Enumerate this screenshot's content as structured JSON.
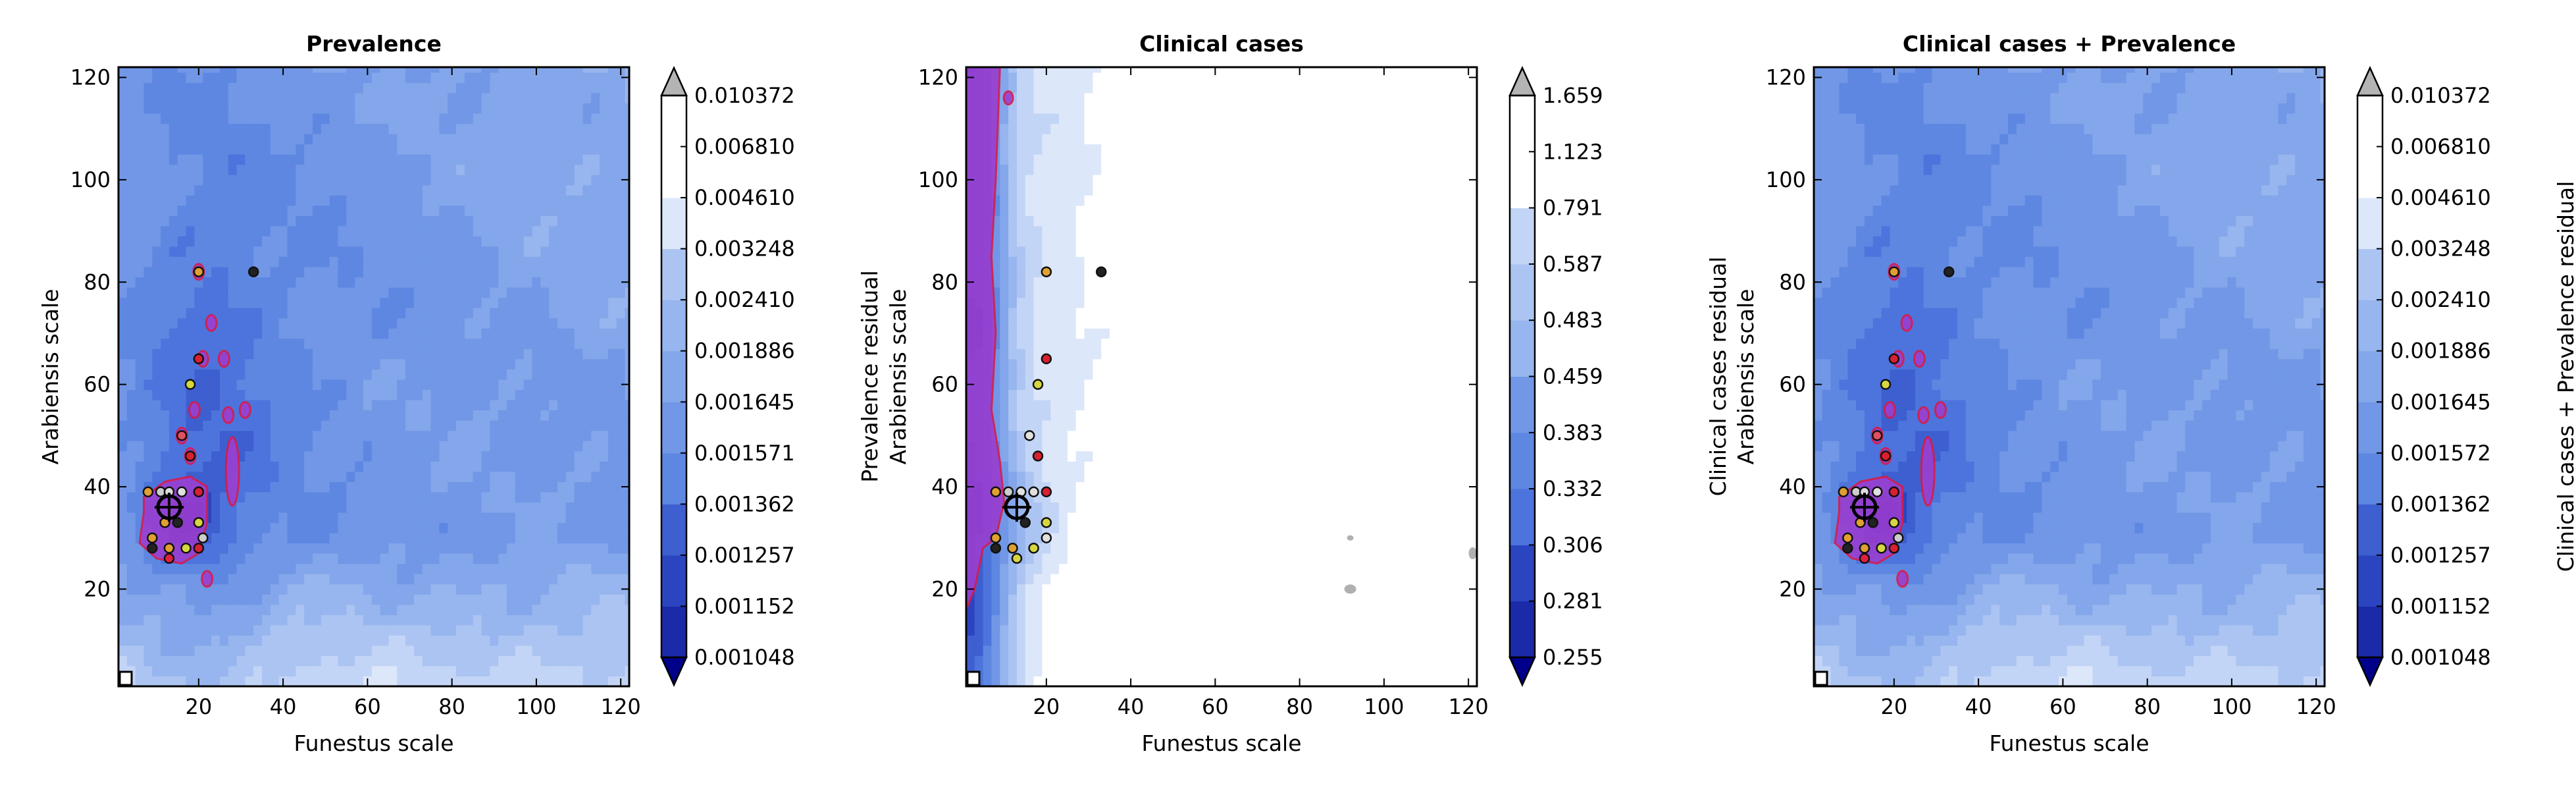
{
  "figure": {
    "colors": {
      "levels": [
        "#00008b",
        "#1a2aa8",
        "#2b45c0",
        "#3e5fd0",
        "#4d74dc",
        "#5e87e2",
        "#7197e6",
        "#84a6ea",
        "#97b5ee",
        "#acc4f2",
        "#c3d5f6",
        "#dde7fa",
        "#ffffff"
      ],
      "over": "#b4b4b4",
      "sig_fill": "#9a3fd0",
      "sig_edge": "#d81b4a",
      "grey_blob": "#b0b0b0"
    }
  },
  "chart_data": [
    {
      "type": "heatmap",
      "title": "Prevalence",
      "xlabel": "Funestus scale",
      "ylabel": "Arabiensis scale",
      "xlim": [
        1,
        122
      ],
      "ylim": [
        1,
        122
      ],
      "xticks": [
        20,
        40,
        60,
        80,
        100,
        120
      ],
      "yticks": [
        20,
        40,
        60,
        80,
        100,
        120
      ],
      "colorbar": {
        "label": "Prevalence residual",
        "extend": "both",
        "ticks": [
          "0.001048",
          "0.001152",
          "0.001257",
          "0.001362",
          "0.001571",
          "0.001645",
          "0.001886",
          "0.002410",
          "0.003248",
          "0.004610",
          "0.006810",
          "0.010372"
        ]
      },
      "best_fit": [
        13,
        36
      ],
      "points": [
        {
          "x": 20,
          "y": 82,
          "c": "#e0a030"
        },
        {
          "x": 33,
          "y": 82,
          "c": "#222222"
        },
        {
          "x": 20,
          "y": 65,
          "c": "#d82030"
        },
        {
          "x": 18,
          "y": 60,
          "c": "#d6d640"
        },
        {
          "x": 18,
          "y": 46,
          "c": "#d82030"
        },
        {
          "x": 16,
          "y": 50,
          "c": "#e05060"
        },
        {
          "x": 8,
          "y": 39,
          "c": "#e0a030"
        },
        {
          "x": 11,
          "y": 39,
          "c": "#cccccc"
        },
        {
          "x": 13,
          "y": 39,
          "c": "#dddddd"
        },
        {
          "x": 16,
          "y": 39,
          "c": "#e0e0e0"
        },
        {
          "x": 20,
          "y": 39,
          "c": "#d82030"
        },
        {
          "x": 12,
          "y": 33,
          "c": "#e0a030"
        },
        {
          "x": 15,
          "y": 33,
          "c": "#222222"
        },
        {
          "x": 20,
          "y": 33,
          "c": "#d6d640"
        },
        {
          "x": 9,
          "y": 30,
          "c": "#e0a030"
        },
        {
          "x": 9,
          "y": 28,
          "c": "#222222"
        },
        {
          "x": 13,
          "y": 28,
          "c": "#e0a030"
        },
        {
          "x": 17,
          "y": 28,
          "c": "#d6d640"
        },
        {
          "x": 21,
          "y": 30,
          "c": "#cccccc"
        },
        {
          "x": 13,
          "y": 26,
          "c": "#e02040"
        },
        {
          "x": 20,
          "y": 28,
          "c": "#d82030"
        }
      ]
    },
    {
      "type": "heatmap",
      "title": "Clinical cases",
      "xlabel": "Funestus scale",
      "ylabel": "Arabiensis scale",
      "xlim": [
        1,
        122
      ],
      "ylim": [
        1,
        122
      ],
      "xticks": [
        20,
        40,
        60,
        80,
        100,
        120
      ],
      "yticks": [
        20,
        40,
        60,
        80,
        100,
        120
      ],
      "colorbar": {
        "label": "Clinical cases residual",
        "extend": "both",
        "ticks": [
          "0.255",
          "0.281",
          "0.306",
          "0.332",
          "0.383",
          "0.459",
          "0.483",
          "0.587",
          "0.791",
          "1.123",
          "1.659"
        ]
      },
      "best_fit": [
        13,
        36
      ],
      "points": [
        {
          "x": 20,
          "y": 82,
          "c": "#e0a030"
        },
        {
          "x": 33,
          "y": 82,
          "c": "#222222"
        },
        {
          "x": 20,
          "y": 65,
          "c": "#d82030"
        },
        {
          "x": 18,
          "y": 60,
          "c": "#d6d640"
        },
        {
          "x": 16,
          "y": 50,
          "c": "#e0e0e0"
        },
        {
          "x": 18,
          "y": 46,
          "c": "#d82030"
        },
        {
          "x": 8,
          "y": 39,
          "c": "#e0a030"
        },
        {
          "x": 11,
          "y": 39,
          "c": "#cccccc"
        },
        {
          "x": 14,
          "y": 39,
          "c": "#e0e0e0"
        },
        {
          "x": 17,
          "y": 39,
          "c": "#e0e0e0"
        },
        {
          "x": 20,
          "y": 39,
          "c": "#d82030"
        },
        {
          "x": 20,
          "y": 33,
          "c": "#d6d640"
        },
        {
          "x": 15,
          "y": 33,
          "c": "#222222"
        },
        {
          "x": 8,
          "y": 30,
          "c": "#e0a030"
        },
        {
          "x": 8,
          "y": 28,
          "c": "#222222"
        },
        {
          "x": 12,
          "y": 28,
          "c": "#e0a030"
        },
        {
          "x": 17,
          "y": 28,
          "c": "#d6d640"
        },
        {
          "x": 20,
          "y": 30,
          "c": "#e0e0e0"
        },
        {
          "x": 13,
          "y": 26,
          "c": "#d6d640"
        }
      ]
    },
    {
      "type": "heatmap",
      "title": "Clinical cases + Prevalence",
      "xlabel": "Funestus scale",
      "ylabel": "Arabiensis scale",
      "xlim": [
        1,
        122
      ],
      "ylim": [
        1,
        122
      ],
      "xticks": [
        20,
        40,
        60,
        80,
        100,
        120
      ],
      "yticks": [
        20,
        40,
        60,
        80,
        100,
        120
      ],
      "colorbar": {
        "label": "Clinical cases + Prevalence residual",
        "extend": "both",
        "ticks": [
          "0.001048",
          "0.001152",
          "0.001257",
          "0.001362",
          "0.001572",
          "0.001645",
          "0.001886",
          "0.002410",
          "0.003248",
          "0.004610",
          "0.006810",
          "0.010372"
        ]
      },
      "best_fit": [
        13,
        36
      ],
      "points": [
        {
          "x": 20,
          "y": 82,
          "c": "#e0a030"
        },
        {
          "x": 33,
          "y": 82,
          "c": "#222222"
        },
        {
          "x": 20,
          "y": 65,
          "c": "#d82030"
        },
        {
          "x": 18,
          "y": 60,
          "c": "#d6d640"
        },
        {
          "x": 18,
          "y": 46,
          "c": "#d82030"
        },
        {
          "x": 16,
          "y": 50,
          "c": "#e05060"
        },
        {
          "x": 8,
          "y": 39,
          "c": "#e0a030"
        },
        {
          "x": 11,
          "y": 39,
          "c": "#cccccc"
        },
        {
          "x": 13,
          "y": 39,
          "c": "#dddddd"
        },
        {
          "x": 16,
          "y": 39,
          "c": "#e0e0e0"
        },
        {
          "x": 20,
          "y": 39,
          "c": "#d82030"
        },
        {
          "x": 12,
          "y": 33,
          "c": "#e0a030"
        },
        {
          "x": 15,
          "y": 33,
          "c": "#222222"
        },
        {
          "x": 20,
          "y": 33,
          "c": "#d6d640"
        },
        {
          "x": 9,
          "y": 30,
          "c": "#e0a030"
        },
        {
          "x": 9,
          "y": 28,
          "c": "#222222"
        },
        {
          "x": 13,
          "y": 28,
          "c": "#e0a030"
        },
        {
          "x": 17,
          "y": 28,
          "c": "#d6d640"
        },
        {
          "x": 21,
          "y": 30,
          "c": "#cccccc"
        },
        {
          "x": 13,
          "y": 26,
          "c": "#e02040"
        },
        {
          "x": 20,
          "y": 28,
          "c": "#d82030"
        }
      ]
    }
  ]
}
